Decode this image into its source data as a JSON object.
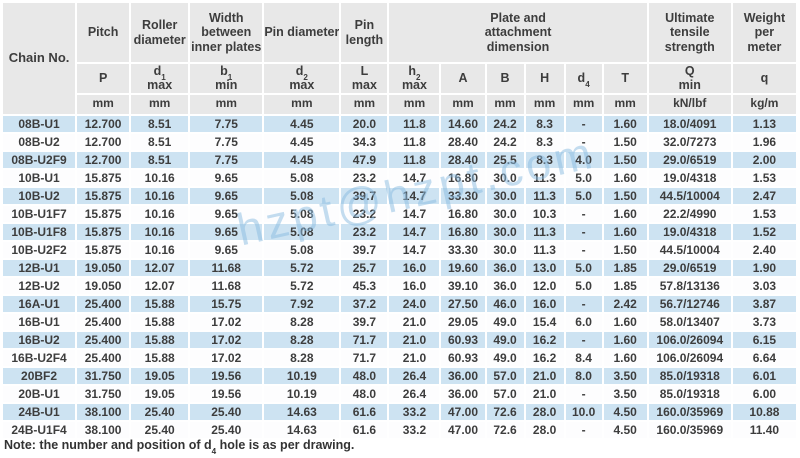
{
  "watermark": {
    "text": "hzpt@hzpt.com",
    "color": "#8bbce1"
  },
  "table": {
    "corner_label": "Chain No.",
    "groups": [
      {
        "label": "Pitch",
        "span": 1
      },
      {
        "label": "Roller diameter",
        "span": 1
      },
      {
        "label": "Width between inner plates",
        "span": 1
      },
      {
        "label": "Pin diameter",
        "span": 1
      },
      {
        "label": "Pin length",
        "span": 1
      },
      {
        "label": "Plate and attachment dimension",
        "span": 6
      },
      {
        "label": "Ultimate tensile strength",
        "span": 1
      },
      {
        "label": "Weight per meter",
        "span": 1
      }
    ],
    "columns": [
      {
        "sym": "P",
        "sub": "",
        "line2": "",
        "unit": "mm"
      },
      {
        "sym": "d",
        "sub": "1",
        "line2": "max",
        "unit": "mm"
      },
      {
        "sym": "b",
        "sub": "1",
        "line2": "min",
        "unit": "mm"
      },
      {
        "sym": "d",
        "sub": "2",
        "line2": "max",
        "unit": "mm"
      },
      {
        "sym": "L",
        "sub": "",
        "line2": "max",
        "unit": "mm"
      },
      {
        "sym": "h",
        "sub": "2",
        "line2": "max",
        "unit": "mm"
      },
      {
        "sym": "A",
        "sub": "",
        "line2": "",
        "unit": "mm"
      },
      {
        "sym": "B",
        "sub": "",
        "line2": "",
        "unit": "mm"
      },
      {
        "sym": "H",
        "sub": "",
        "line2": "",
        "unit": "mm"
      },
      {
        "sym": "d",
        "sub": "4",
        "line2": "",
        "unit": "mm"
      },
      {
        "sym": "T",
        "sub": "",
        "line2": "",
        "unit": "mm"
      },
      {
        "sym": "Q",
        "sub": "",
        "line2": "min",
        "unit": "kN/lbf"
      },
      {
        "sym": "q",
        "sub": "",
        "line2": "",
        "unit": "kg/m"
      }
    ],
    "rows": [
      [
        "08B-U1",
        "12.700",
        "8.51",
        "7.75",
        "4.45",
        "20.0",
        "11.8",
        "14.60",
        "24.2",
        "8.3",
        "-",
        "1.60",
        "18.0/4091",
        "1.13"
      ],
      [
        "08B-U2",
        "12.700",
        "8.51",
        "7.75",
        "4.45",
        "34.3",
        "11.8",
        "28.40",
        "24.2",
        "8.3",
        "-",
        "1.50",
        "32.0/7273",
        "1.96"
      ],
      [
        "08B-U2F9",
        "12.700",
        "8.51",
        "7.75",
        "4.45",
        "47.9",
        "11.8",
        "28.40",
        "25.5",
        "8.3",
        "4.0",
        "1.50",
        "29.0/6519",
        "2.00"
      ],
      [
        "10B-U1",
        "15.875",
        "10.16",
        "9.65",
        "5.08",
        "23.2",
        "14.7",
        "16.80",
        "30.0",
        "11.3",
        "5.0",
        "1.60",
        "19.0/4318",
        "1.53"
      ],
      [
        "10B-U2",
        "15.875",
        "10.16",
        "9.65",
        "5.08",
        "39.7",
        "14.7",
        "33.30",
        "30.0",
        "11.3",
        "5.0",
        "1.50",
        "44.5/10004",
        "2.47"
      ],
      [
        "10B-U1F7",
        "15.875",
        "10.16",
        "9.65",
        "5.08",
        "23.2",
        "14.7",
        "16.80",
        "30.0",
        "10.3",
        "-",
        "1.60",
        "22.2/4990",
        "1.53"
      ],
      [
        "10B-U1F8",
        "15.875",
        "10.16",
        "9.65",
        "5.08",
        "23.2",
        "14.7",
        "16.80",
        "30.0",
        "11.3",
        "-",
        "1.60",
        "19.0/4318",
        "1.52"
      ],
      [
        "10B-U2F2",
        "15.875",
        "10.16",
        "9.65",
        "5.08",
        "39.7",
        "14.7",
        "33.30",
        "30.0",
        "11.3",
        "-",
        "1.50",
        "44.5/10004",
        "2.40"
      ],
      [
        "12B-U1",
        "19.050",
        "12.07",
        "11.68",
        "5.72",
        "25.7",
        "16.0",
        "19.60",
        "36.0",
        "13.0",
        "5.0",
        "1.85",
        "29.0/6519",
        "1.90"
      ],
      [
        "12B-U2",
        "19.050",
        "12.07",
        "11.68",
        "5.72",
        "45.3",
        "16.0",
        "39.10",
        "36.0",
        "12.0",
        "5.0",
        "1.85",
        "57.8/13136",
        "3.03"
      ],
      [
        "16A-U1",
        "25.400",
        "15.88",
        "15.75",
        "7.92",
        "37.2",
        "24.0",
        "27.50",
        "46.0",
        "16.0",
        "-",
        "2.42",
        "56.7/12746",
        "3.87"
      ],
      [
        "16B-U1",
        "25.400",
        "15.88",
        "17.02",
        "8.28",
        "39.7",
        "21.0",
        "29.05",
        "49.0",
        "15.4",
        "6.0",
        "1.60",
        "58.0/13407",
        "3.73"
      ],
      [
        "16B-U2",
        "25.400",
        "15.88",
        "17.02",
        "8.28",
        "71.7",
        "21.0",
        "60.93",
        "49.0",
        "16.2",
        "-",
        "1.60",
        "106.0/26094",
        "6.15"
      ],
      [
        "16B-U2F4",
        "25.400",
        "15.88",
        "17.02",
        "8.28",
        "71.7",
        "21.0",
        "60.93",
        "49.0",
        "16.2",
        "8.4",
        "1.60",
        "106.0/26094",
        "6.64"
      ],
      [
        "20BF2",
        "31.750",
        "19.05",
        "19.56",
        "10.19",
        "48.0",
        "26.4",
        "36.00",
        "57.0",
        "21.0",
        "8.0",
        "3.50",
        "85.0/19318",
        "6.01"
      ],
      [
        "20B-U1",
        "31.750",
        "19.05",
        "19.56",
        "10.19",
        "48.0",
        "26.4",
        "36.00",
        "57.0",
        "21.0",
        "-",
        "3.50",
        "85.0/19318",
        "6.00"
      ],
      [
        "24B-U1",
        "38.100",
        "25.40",
        "25.40",
        "14.63",
        "61.6",
        "33.2",
        "47.00",
        "72.6",
        "28.0",
        "10.0",
        "4.50",
        "160.0/35969",
        "10.88"
      ],
      [
        "24B-U1F4",
        "38.100",
        "25.40",
        "25.40",
        "14.63",
        "61.6",
        "33.2",
        "47.00",
        "72.6",
        "28.0",
        "-",
        "4.50",
        "160.0/35969",
        "11.40"
      ]
    ]
  },
  "note": {
    "prefix": "Note: the number and position of d",
    "sub": "4",
    "suffix": " hole is as per drawing."
  }
}
